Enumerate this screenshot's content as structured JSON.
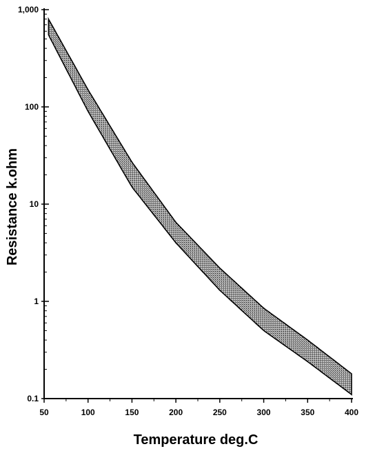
{
  "chart_data": {
    "type": "area",
    "title": "",
    "xlabel": "Temperature deg.C",
    "ylabel": "Resistance k.ohm",
    "xlim": [
      50,
      400
    ],
    "ylim": [
      0.1,
      1000
    ],
    "yscale": "log",
    "grid": false,
    "x_ticks": [
      "50",
      "100",
      "150",
      "200",
      "250",
      "300",
      "350",
      "400"
    ],
    "y_ticks": [
      "0.1",
      "1",
      "10",
      "100",
      "1,000"
    ],
    "x_tick_values": [
      50,
      100,
      150,
      200,
      250,
      300,
      350,
      400
    ],
    "y_tick_values": [
      0.1,
      1,
      10,
      100,
      1000
    ],
    "band": {
      "x": [
        55,
        100,
        150,
        200,
        250,
        300,
        350,
        400
      ],
      "upper": [
        800,
        150,
        27,
        6.5,
        2.2,
        0.85,
        0.4,
        0.18
      ],
      "lower": [
        550,
        90,
        15,
        4.0,
        1.3,
        0.5,
        0.24,
        0.11
      ]
    },
    "fill_color": "#8c8c8c"
  }
}
